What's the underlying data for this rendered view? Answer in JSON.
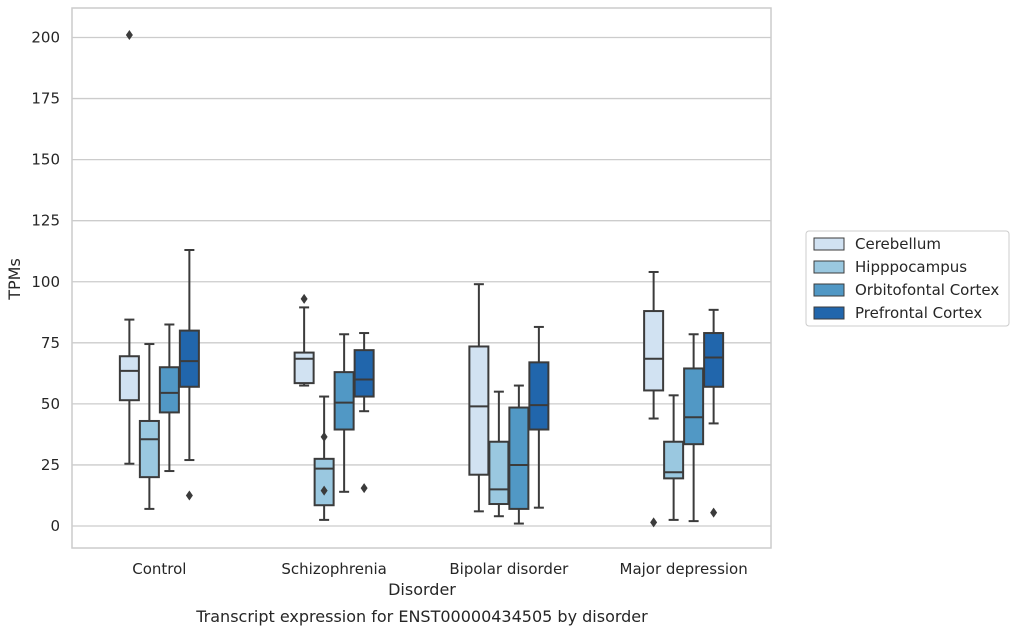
{
  "caption": "Transcript expression for ENST00000434505 by disorder",
  "chart_data": {
    "type": "box",
    "title": "",
    "xlabel": "Disorder",
    "ylabel": "TPMs",
    "ylim": [
      -8.5,
      211
    ],
    "yticks": [
      0,
      25,
      50,
      75,
      100,
      125,
      150,
      175,
      200
    ],
    "grid": "horizontal",
    "legend_position": "right",
    "categories": [
      "Control",
      "Schizophrenia",
      "Bipolar disorder",
      "Major depression"
    ],
    "series": [
      {
        "name": "Cerebellum",
        "color": "#d1e2f2",
        "boxes": [
          {
            "whisker_low": 25.5,
            "q1": 51.5,
            "median": 63.5,
            "q3": 69.5,
            "whisker_high": 84.5,
            "outliers": [
              201
            ]
          },
          {
            "whisker_low": 57.5,
            "q1": 58.5,
            "median": 68.5,
            "q3": 71,
            "whisker_high": 89.5,
            "outliers": [
              93
            ]
          },
          {
            "whisker_low": 6,
            "q1": 21,
            "median": 49,
            "q3": 73.5,
            "whisker_high": 99,
            "outliers": []
          },
          {
            "whisker_low": 44,
            "q1": 55.5,
            "median": 68.5,
            "q3": 88,
            "whisker_high": 104,
            "outliers": [
              1.5
            ]
          }
        ]
      },
      {
        "name": "Hipppocampus",
        "color": "#9ac8e0",
        "boxes": [
          {
            "whisker_low": 7,
            "q1": 20,
            "median": 35.5,
            "q3": 43,
            "whisker_high": 74.5,
            "outliers": []
          },
          {
            "whisker_low": 2.5,
            "q1": 8.5,
            "median": 23.5,
            "q3": 27.5,
            "whisker_high": 53,
            "outliers": [
              14.5,
              36.5
            ]
          },
          {
            "whisker_low": 4,
            "q1": 9,
            "median": 15,
            "q3": 34.5,
            "whisker_high": 55,
            "outliers": []
          },
          {
            "whisker_low": 2.5,
            "q1": 19.5,
            "median": 22,
            "q3": 34.5,
            "whisker_high": 53.5,
            "outliers": []
          }
        ]
      },
      {
        "name": "Orbitofontal Cortex",
        "color": "#5198c5",
        "boxes": [
          {
            "whisker_low": 22.5,
            "q1": 46.5,
            "median": 54.5,
            "q3": 65,
            "whisker_high": 82.5,
            "outliers": []
          },
          {
            "whisker_low": 14,
            "q1": 39.5,
            "median": 50.5,
            "q3": 63,
            "whisker_high": 78.5,
            "outliers": []
          },
          {
            "whisker_low": 1,
            "q1": 7,
            "median": 25,
            "q3": 48.5,
            "whisker_high": 57.5,
            "outliers": []
          },
          {
            "whisker_low": 2,
            "q1": 33.5,
            "median": 44.5,
            "q3": 64.5,
            "whisker_high": 78.5,
            "outliers": []
          }
        ]
      },
      {
        "name": "Prefrontal Cortex",
        "color": "#2166ac",
        "boxes": [
          {
            "whisker_low": 27,
            "q1": 57,
            "median": 67.5,
            "q3": 80,
            "whisker_high": 113,
            "outliers": [
              12.5
            ]
          },
          {
            "whisker_low": 47,
            "q1": 53,
            "median": 60,
            "q3": 72,
            "whisker_high": 79,
            "outliers": [
              15.5
            ]
          },
          {
            "whisker_low": 7.5,
            "q1": 39.5,
            "median": 49.5,
            "q3": 67,
            "whisker_high": 81.5,
            "outliers": []
          },
          {
            "whisker_low": 42,
            "q1": 57,
            "median": 69,
            "q3": 79,
            "whisker_high": 88.5,
            "outliers": [
              5.5
            ]
          }
        ]
      }
    ]
  }
}
